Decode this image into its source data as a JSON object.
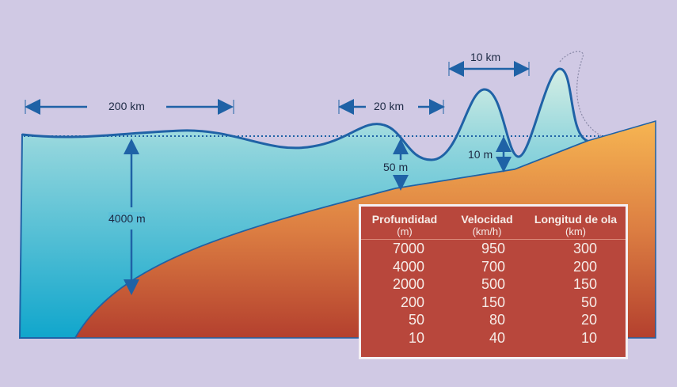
{
  "labels": {
    "wavelength_deep": "200 km",
    "wavelength_mid": "20 km",
    "wavelength_shallow": "10 km",
    "depth_deep": "4000 m",
    "amp_mid": "50 m",
    "amp_shallow": "10 m"
  },
  "table": {
    "headers": [
      "Profundidad",
      "Velocidad",
      "Longitud de ola"
    ],
    "units": [
      "(m)",
      "(km/h)",
      "(km)"
    ],
    "rows": [
      [
        "7000",
        "950",
        "300"
      ],
      [
        "4000",
        "700",
        "200"
      ],
      [
        "2000",
        "500",
        "150"
      ],
      [
        "200",
        "150",
        "50"
      ],
      [
        "50",
        "80",
        "20"
      ],
      [
        "10",
        "40",
        "10"
      ]
    ]
  },
  "colors": {
    "background": "#d0c9e4",
    "water_top": "#c8e8e0",
    "water_bottom": "#14a8cc",
    "land_top": "#f5b050",
    "land_bottom": "#b84a30",
    "line": "#1f62a6",
    "table": "#b8473c"
  }
}
